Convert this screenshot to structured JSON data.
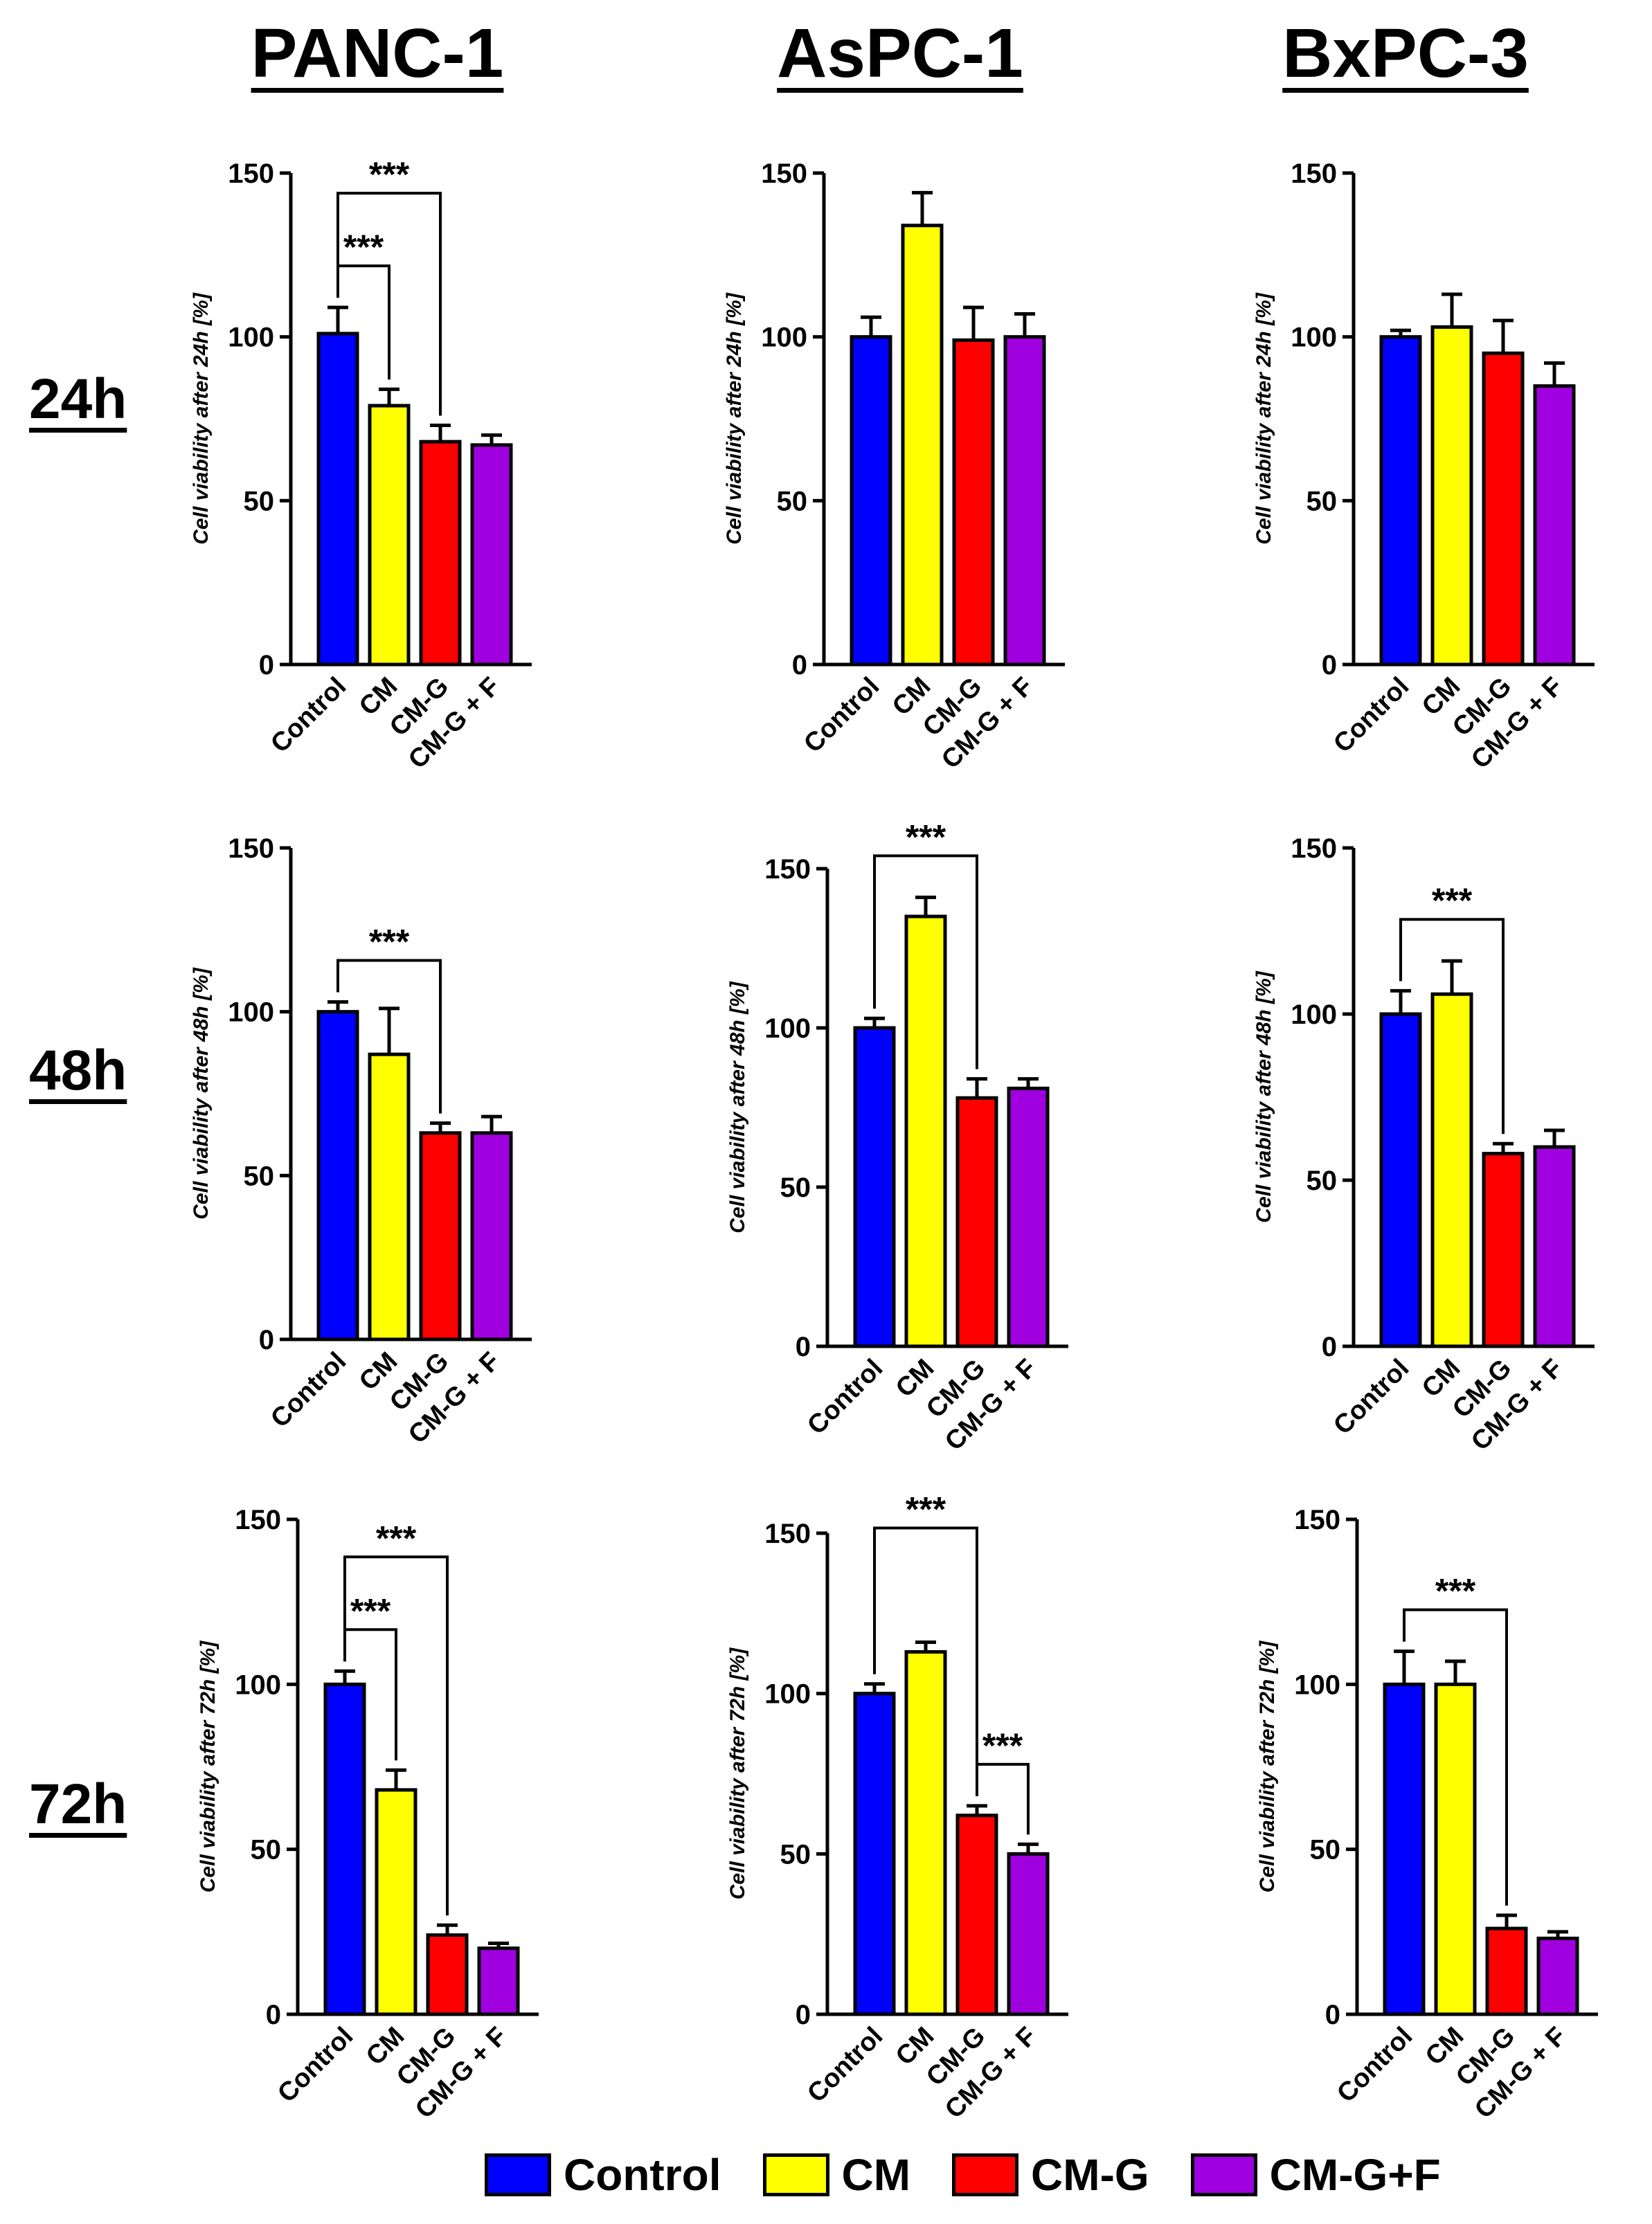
{
  "column_titles": [
    "PANC-1",
    "AsPC-1",
    "BxPC-3"
  ],
  "row_titles": [
    "24h",
    "48h",
    "72h"
  ],
  "legend": [
    {
      "label": "Control",
      "color": "#0000ff"
    },
    {
      "label": "CM",
      "color": "#ffff00"
    },
    {
      "label": "CM-G",
      "color": "#ff0000"
    },
    {
      "label": "CM-G+F",
      "color": "#a000e0"
    }
  ],
  "chart_data": [
    {
      "type": "bar",
      "panel": "PANC-1 24h",
      "categories": [
        "Control",
        "CM",
        "CM-G",
        "CM-G + F"
      ],
      "values": [
        101,
        79,
        68,
        67
      ],
      "errors": [
        8,
        5,
        5,
        3
      ],
      "ylabel": "Cell viability after 24h [%]",
      "ylim": [
        0,
        150
      ],
      "yticks": [
        "0",
        "50",
        "100",
        "150"
      ],
      "significance": [
        {
          "from": 0,
          "to": 1,
          "label": "***"
        },
        {
          "from": 0,
          "to": 2,
          "label": "***"
        }
      ]
    },
    {
      "type": "bar",
      "panel": "AsPC-1 24h",
      "categories": [
        "Control",
        "CM",
        "CM-G",
        "CM-G + F"
      ],
      "values": [
        100,
        134,
        99,
        100
      ],
      "errors": [
        6,
        10,
        10,
        7
      ],
      "ylabel": "Cell viability after 24h [%]",
      "ylim": [
        0,
        150
      ],
      "yticks": [
        "0",
        "50",
        "100",
        "150"
      ],
      "significance": []
    },
    {
      "type": "bar",
      "panel": "BxPC-3 24h",
      "categories": [
        "Control",
        "CM",
        "CM-G",
        "CM-G + F"
      ],
      "values": [
        100,
        103,
        95,
        85
      ],
      "errors": [
        2,
        10,
        10,
        7
      ],
      "ylabel": "Cell viability after 24h [%]",
      "ylim": [
        0,
        150
      ],
      "yticks": [
        "0",
        "50",
        "100",
        "150"
      ],
      "significance": []
    },
    {
      "type": "bar",
      "panel": "PANC-1 48h",
      "categories": [
        "Control",
        "CM",
        "CM-G",
        "CM-G + F"
      ],
      "values": [
        100,
        87,
        63,
        63
      ],
      "errors": [
        3,
        14,
        3,
        5
      ],
      "ylabel": "Cell viability after 48h [%]",
      "ylim": [
        0,
        150
      ],
      "yticks": [
        "0",
        "50",
        "100",
        "150"
      ],
      "significance": [
        {
          "from": 0,
          "to": 2,
          "label": "***"
        }
      ]
    },
    {
      "type": "bar",
      "panel": "AsPC-1 48h",
      "categories": [
        "Control",
        "CM",
        "CM-G",
        "CM-G + F"
      ],
      "values": [
        100,
        135,
        78,
        81
      ],
      "errors": [
        3,
        6,
        6,
        3
      ],
      "ylabel": "Cell viability after 48h [%]",
      "ylim": [
        0,
        150
      ],
      "yticks": [
        "0",
        "50",
        "100",
        "150"
      ],
      "significance": [
        {
          "from": 0,
          "to": 2,
          "label": "***"
        }
      ]
    },
    {
      "type": "bar",
      "panel": "BxPC-3 48h",
      "categories": [
        "Control",
        "CM",
        "CM-G",
        "CM-G + F"
      ],
      "values": [
        100,
        106,
        58,
        60
      ],
      "errors": [
        7,
        10,
        3,
        5
      ],
      "ylabel": "Cell viability after 48h [%]",
      "ylim": [
        0,
        150
      ],
      "yticks": [
        "0",
        "50",
        "100",
        "150"
      ],
      "significance": [
        {
          "from": 0,
          "to": 2,
          "label": "***"
        }
      ]
    },
    {
      "type": "bar",
      "panel": "PANC-1 72h",
      "categories": [
        "Control",
        "CM",
        "CM-G",
        "CM-G + F"
      ],
      "values": [
        100,
        68,
        24,
        20
      ],
      "errors": [
        4,
        6,
        3,
        1.5
      ],
      "ylabel": "Cell viability after 72h [%]",
      "ylim": [
        0,
        150
      ],
      "yticks": [
        "0",
        "50",
        "100",
        "150"
      ],
      "significance": [
        {
          "from": 0,
          "to": 1,
          "label": "***"
        },
        {
          "from": 0,
          "to": 2,
          "label": "***"
        }
      ]
    },
    {
      "type": "bar",
      "panel": "AsPC-1 72h",
      "categories": [
        "Control",
        "CM",
        "CM-G",
        "CM-G + F"
      ],
      "values": [
        100,
        113,
        62,
        50
      ],
      "errors": [
        3,
        3,
        3,
        3
      ],
      "ylabel": "Cell viability after 72h [%]",
      "ylim": [
        0,
        150
      ],
      "yticks": [
        "0",
        "50",
        "100",
        "150"
      ],
      "significance": [
        {
          "from": 0,
          "to": 2,
          "label": "***"
        },
        {
          "from": 2,
          "to": 3,
          "label": "***"
        }
      ]
    },
    {
      "type": "bar",
      "panel": "BxPC-3 72h",
      "categories": [
        "Control",
        "CM",
        "CM-G",
        "CM-G + F"
      ],
      "values": [
        100,
        100,
        26,
        23
      ],
      "errors": [
        10,
        7,
        4,
        2
      ],
      "ylabel": "Cell viability after 72h [%]",
      "ylim": [
        0,
        150
      ],
      "yticks": [
        "0",
        "50",
        "100",
        "150"
      ],
      "significance": [
        {
          "from": 0,
          "to": 2,
          "label": "***"
        }
      ]
    }
  ]
}
